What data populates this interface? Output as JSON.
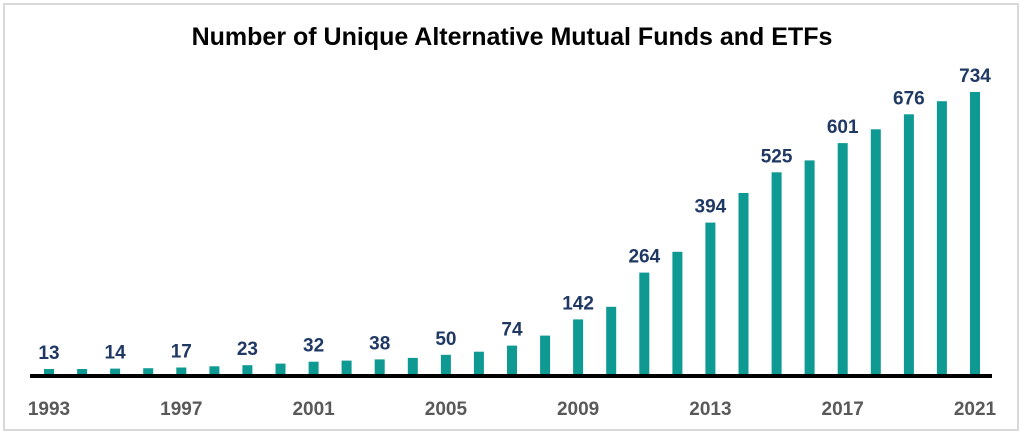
{
  "chart_data": {
    "type": "bar",
    "title": "Number of Unique Alternative Mutual Funds and ETFs",
    "xlabel": "",
    "ylabel": "",
    "ylim": [
      0,
      760
    ],
    "grid": false,
    "legend": "none",
    "categories": [
      "1993",
      "1994",
      "1995",
      "1996",
      "1997",
      "1998",
      "1999",
      "2000",
      "2001",
      "2002",
      "2003",
      "2004",
      "2005",
      "2006",
      "2007",
      "2008",
      "2009",
      "2010",
      "2011",
      "2012",
      "2013",
      "2014",
      "2015",
      "2016",
      "2017",
      "2018",
      "2019",
      "2020",
      "2021"
    ],
    "values": [
      13,
      13,
      14,
      15,
      17,
      20,
      23,
      27,
      32,
      35,
      38,
      42,
      50,
      58,
      74,
      100,
      142,
      175,
      264,
      318,
      394,
      471,
      525,
      556,
      601,
      637,
      676,
      710,
      734
    ],
    "labeled_indices": [
      0,
      2,
      4,
      6,
      8,
      10,
      12,
      14,
      16,
      18,
      20,
      22,
      24,
      26,
      28
    ],
    "tick_labels": [
      "1993",
      "1997",
      "2001",
      "2005",
      "2009",
      "2013",
      "2017",
      "2021"
    ],
    "tick_indices": [
      0,
      4,
      8,
      12,
      16,
      20,
      24,
      28
    ],
    "bar_color": "#0e9a93",
    "label_color": "#1f3864",
    "axis_color": "#000000",
    "tick_color": "#595959"
  }
}
